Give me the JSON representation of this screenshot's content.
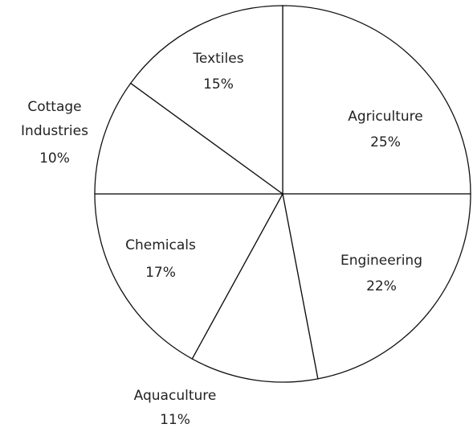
{
  "chart_data": {
    "type": "pie",
    "categories": [
      "Agriculture",
      "Engineering",
      "Aquaculture",
      "Chemicals",
      "Cottage Industries",
      "Textiles"
    ],
    "values": [
      25,
      22,
      11,
      17,
      10,
      15
    ],
    "value_labels": [
      "25%",
      "22%",
      "11%",
      "17%",
      "10%",
      "15%"
    ],
    "color": "#ffffff"
  }
}
